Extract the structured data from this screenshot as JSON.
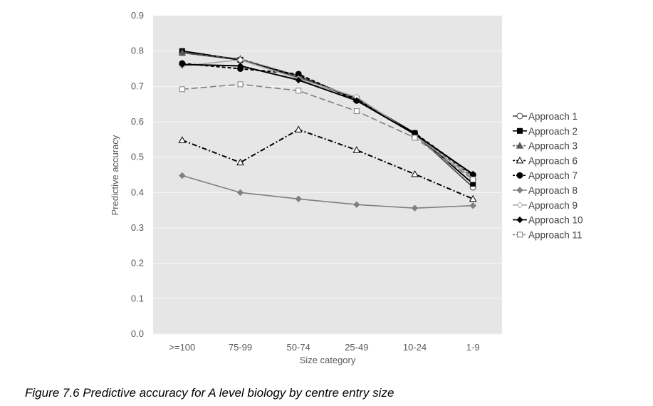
{
  "figure": {
    "caption": "Figure 7.6 Predictive accuracy for A level biology by centre entry size"
  },
  "chart_data": {
    "type": "line",
    "xlabel": "Size category",
    "ylabel": "Predictive accuracy",
    "categories": [
      ">=100",
      "75-99",
      "50-74",
      "25-49",
      "10-24",
      "1-9"
    ],
    "ylim": [
      0,
      0.9
    ],
    "yticks": [
      "0.0",
      "0.1",
      "0.2",
      "0.3",
      "0.4",
      "0.5",
      "0.6",
      "0.7",
      "0.8",
      "0.9"
    ],
    "grid": true,
    "plot_background": "#e6e6e6",
    "legend_position": "right",
    "series": [
      {
        "name": "Approach 1",
        "values": [
          0.795,
          0.775,
          0.725,
          0.665,
          0.565,
          0.415
        ],
        "color": "#404040",
        "marker": "circle-open",
        "dash": "solid"
      },
      {
        "name": "Approach 2",
        "values": [
          0.8,
          0.775,
          0.73,
          0.665,
          0.568,
          0.425
        ],
        "color": "#000000",
        "marker": "square-filled",
        "dash": "solid"
      },
      {
        "name": "Approach 3",
        "values": [
          0.795,
          0.778,
          0.73,
          0.665,
          0.565,
          0.445
        ],
        "color": "#595959",
        "marker": "triangle-filled",
        "dash": "dash"
      },
      {
        "name": "Approach 6",
        "values": [
          0.548,
          0.485,
          0.578,
          0.52,
          0.452,
          0.382
        ],
        "color": "#000000",
        "marker": "triangle-open",
        "dash": "dashdot"
      },
      {
        "name": "Approach 7",
        "values": [
          0.765,
          0.75,
          0.735,
          0.66,
          0.568,
          0.45
        ],
        "color": "#000000",
        "marker": "circle-filled",
        "dash": "dash"
      },
      {
        "name": "Approach 8",
        "values": [
          0.448,
          0.4,
          0.382,
          0.366,
          0.356,
          0.363
        ],
        "color": "#808080",
        "marker": "diamond-filled",
        "dash": "solid"
      },
      {
        "name": "Approach 9",
        "values": [
          0.758,
          0.775,
          0.722,
          0.67,
          0.563,
          0.44
        ],
        "color": "#a6a6a6",
        "marker": "diamond-open",
        "dash": "solid"
      },
      {
        "name": "Approach 10",
        "values": [
          0.762,
          0.758,
          0.718,
          0.66,
          0.565,
          0.452
        ],
        "color": "#000000",
        "marker": "diamond-filled",
        "dash": "solid"
      },
      {
        "name": "Approach 11",
        "values": [
          0.692,
          0.706,
          0.688,
          0.63,
          0.555,
          0.437
        ],
        "color": "#808080",
        "marker": "square-open",
        "dash": "longdash"
      }
    ]
  }
}
